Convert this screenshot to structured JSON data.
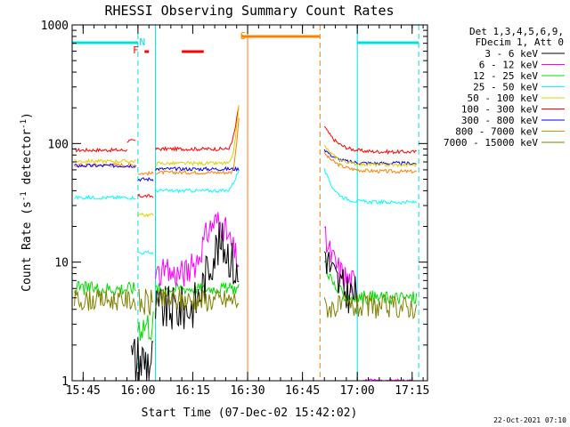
{
  "chart_data": {
    "type": "line",
    "title": "RHESSI Observing Summary Count Rates",
    "xlabel": "Start Time (07-Dec-02 15:42:02)",
    "ylabel_main": "Count Rate (s",
    "ylabel_sup1": "-1",
    "ylabel_mid": " detector",
    "ylabel_sup2": "-1",
    "ylabel_end": ")",
    "yscale": "log",
    "ylim": [
      1,
      1000
    ],
    "xlim_minutes": [
      15.7,
      17.32
    ],
    "x_ticks": [
      {
        "t": 15.75,
        "label": "15:45"
      },
      {
        "t": 16.0,
        "label": "16:00"
      },
      {
        "t": 16.25,
        "label": "16:15"
      },
      {
        "t": 16.5,
        "label": "16:30"
      },
      {
        "t": 16.75,
        "label": "16:45"
      },
      {
        "t": 17.0,
        "label": "17:00"
      },
      {
        "t": 17.25,
        "label": "17:15"
      }
    ],
    "y_ticks": [
      {
        "v": 1,
        "label": "1"
      },
      {
        "v": 10,
        "label": "10"
      },
      {
        "v": 100,
        "label": "100"
      },
      {
        "v": 1000,
        "label": "1000"
      }
    ],
    "legend_header": [
      "Det 1,3,4,5,6,9,",
      "FDecim 1, Att 0"
    ],
    "timestamp": "22-Oct-2021 07:10",
    "flags": [
      {
        "label": "N",
        "color": "#00e0e0"
      },
      {
        "label": "F",
        "color": "#ff0000"
      },
      {
        "label": "S",
        "color": "#ff8000"
      }
    ],
    "series": [
      {
        "name": "3 - 6 keV",
        "color": "#000000"
      },
      {
        "name": "6 - 12 keV",
        "color": "#ff00ff"
      },
      {
        "name": "12 - 25 keV",
        "color": "#00dd00"
      },
      {
        "name": "25 - 50 keV",
        "color": "#00ffff"
      },
      {
        "name": "50 - 100 keV",
        "color": "#e0d000"
      },
      {
        "name": "100 - 300 keV",
        "color": "#ff0000"
      },
      {
        "name": "300 - 800 keV",
        "color": "#0000ff"
      },
      {
        "name": "800 - 7000 keV",
        "color": "#ff8000"
      },
      {
        "name": "7000 - 15000 keV",
        "color": "#808000"
      }
    ]
  }
}
